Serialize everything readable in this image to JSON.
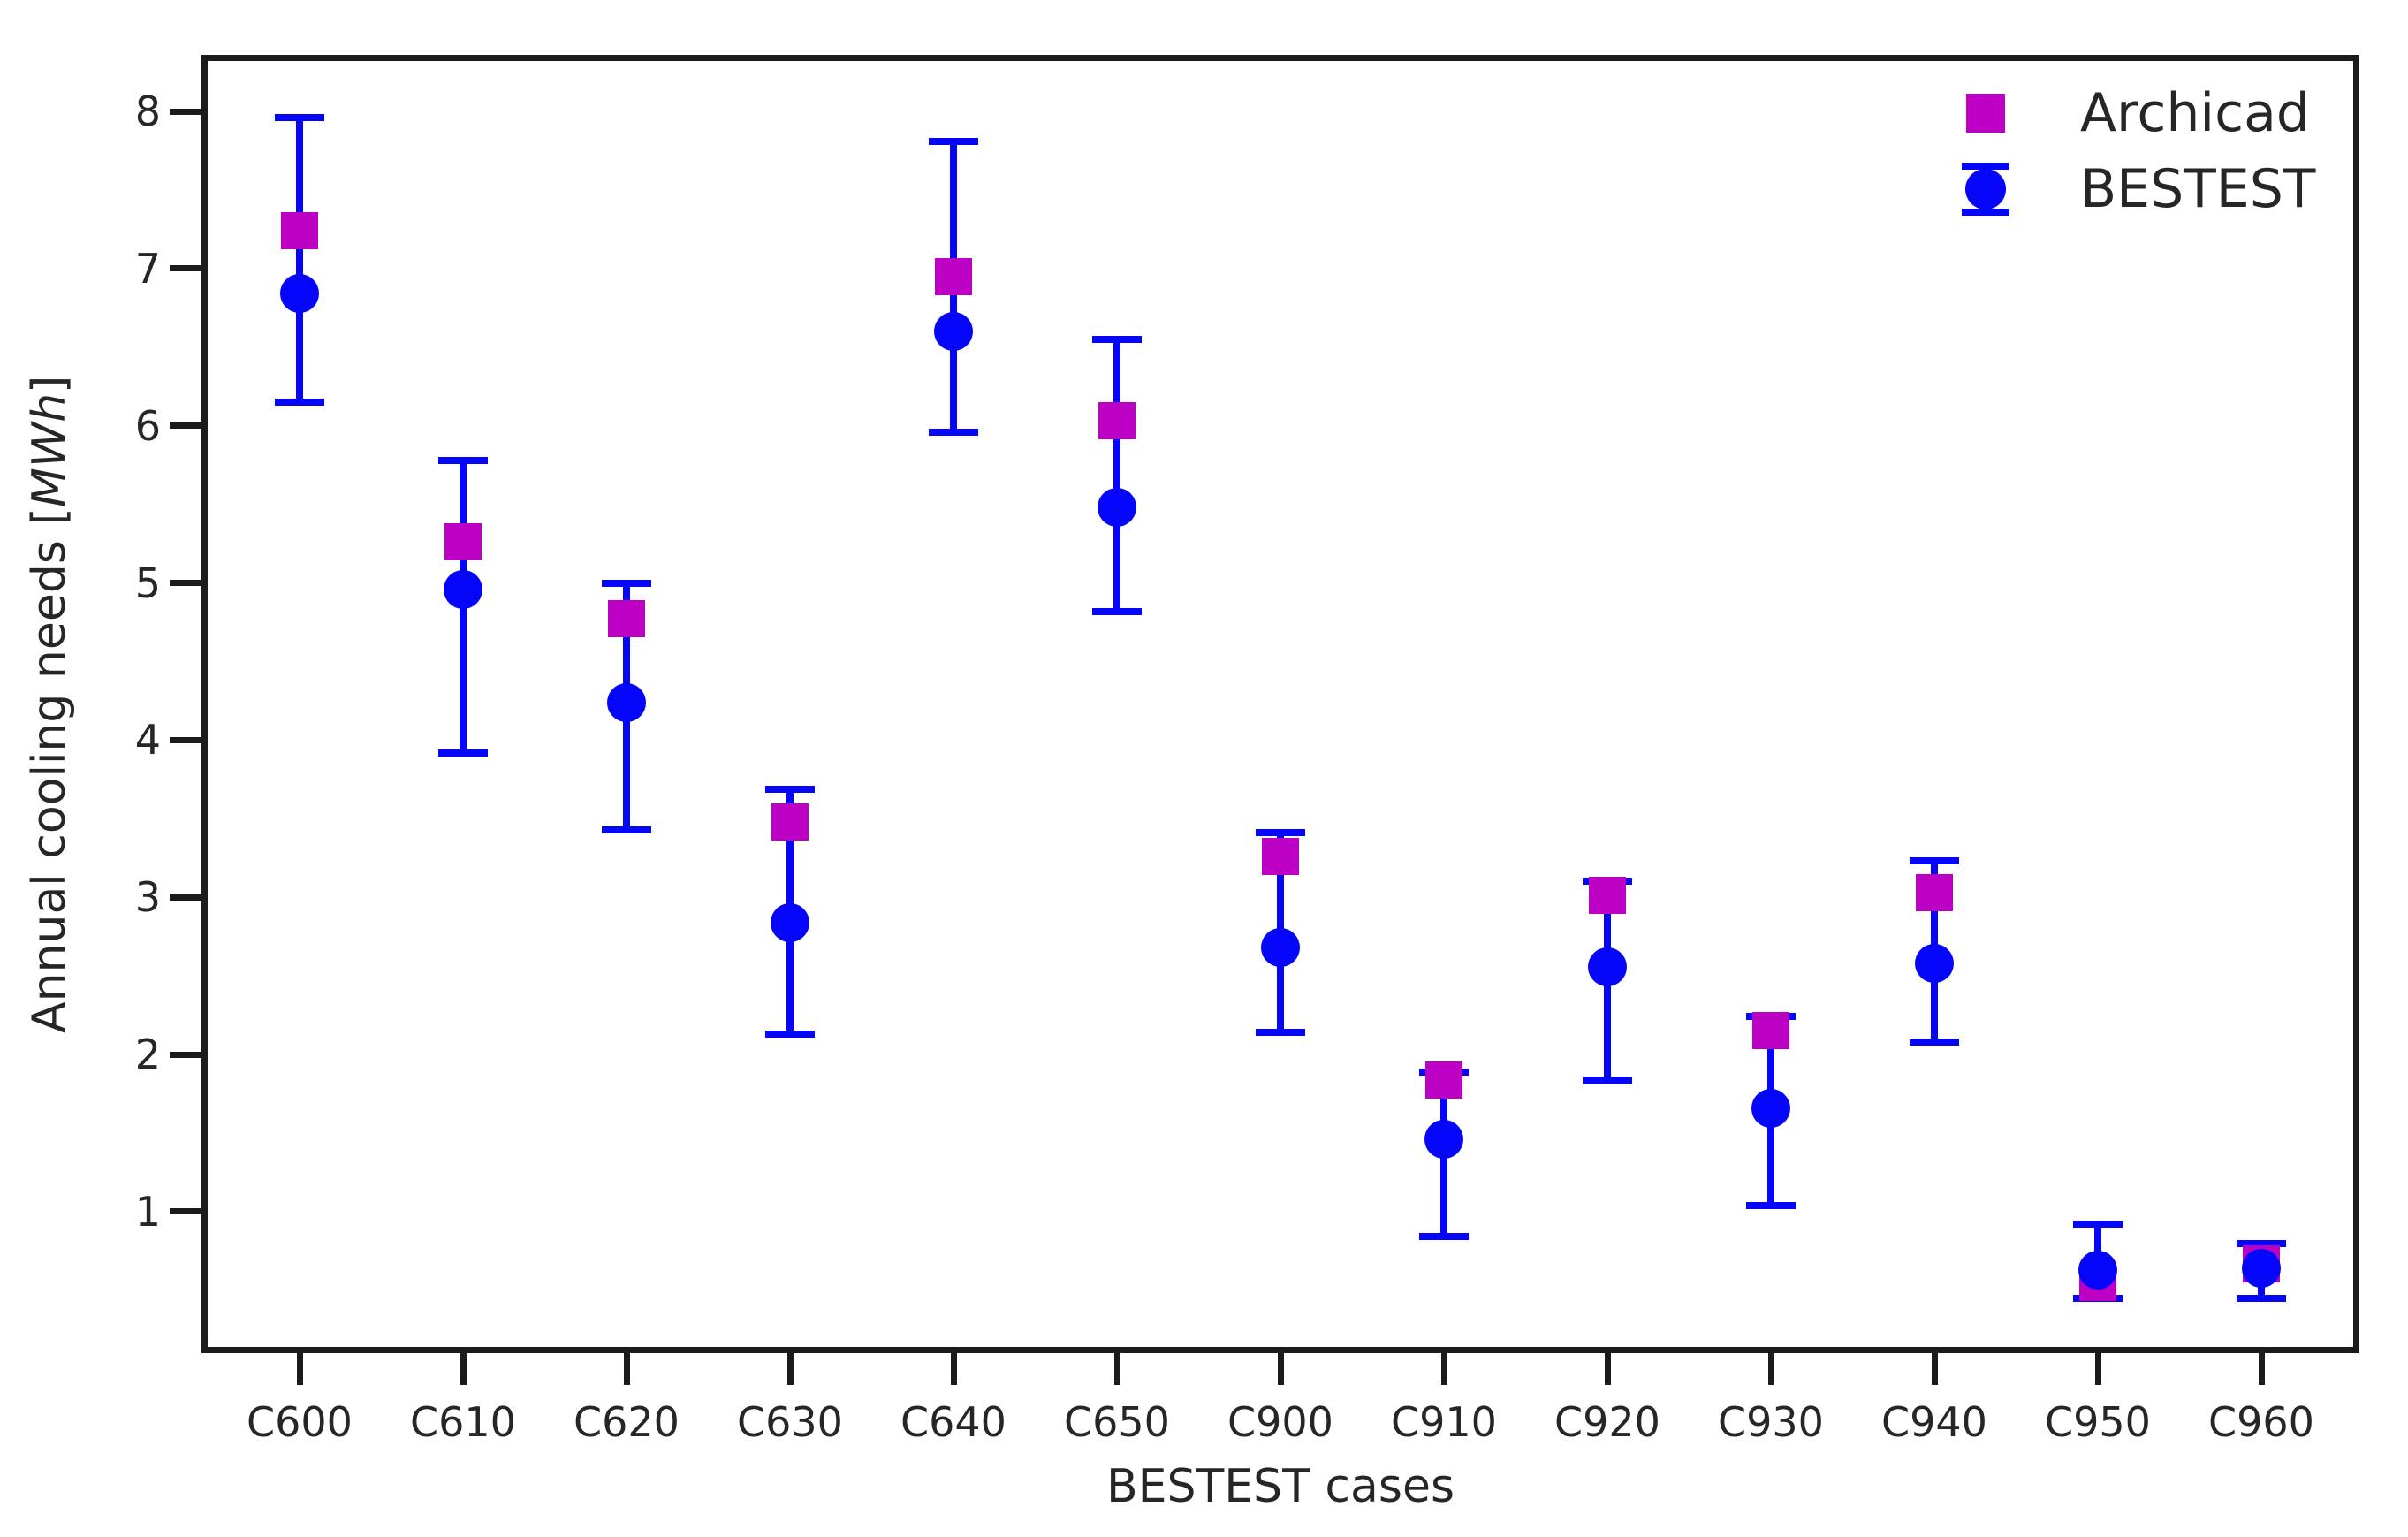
{
  "figure": {
    "background": "#ffffff",
    "text_color": "#262626",
    "spine_color": "#1b1b1b"
  },
  "legend": {
    "frame": false,
    "position": "upper right",
    "entries": [
      {
        "label": "Archicad",
        "marker": "square",
        "color": "#bc00c4"
      },
      {
        "label": "BESTEST",
        "marker": "circle-errorbar",
        "color": "#0505fa"
      }
    ]
  },
  "ylabel": {
    "prefix": "Annual cooling needs [",
    "italic": "MWh",
    "suffix": "]"
  },
  "chart_data": {
    "type": "scatter",
    "title": "",
    "xlabel": "BESTEST cases",
    "ylabel": "Annual cooling needs [MWh]",
    "grid": false,
    "legend_position": "upper right",
    "categories": [
      "C600",
      "C610",
      "C620",
      "C630",
      "C640",
      "C650",
      "C900",
      "C910",
      "C920",
      "C930",
      "C940",
      "C950",
      "C960"
    ],
    "yticks": [
      1,
      2,
      3,
      4,
      5,
      6,
      7,
      8
    ],
    "ylim": [
      0.1,
      8.36
    ],
    "x_edge_margin": 0.6,
    "series": [
      {
        "name": "Archicad",
        "marker": "square",
        "color": "#bc00c4",
        "values": [
          7.24,
          5.26,
          4.77,
          3.48,
          6.95,
          6.03,
          3.26,
          1.84,
          3.01,
          2.15,
          3.03,
          0.55,
          0.67
        ]
      },
      {
        "name": "BESTEST",
        "marker": "circle",
        "color": "#0505fa",
        "values": [
          6.84,
          4.96,
          4.24,
          2.84,
          6.6,
          5.48,
          2.68,
          1.46,
          2.56,
          1.66,
          2.58,
          0.63,
          0.64
        ],
        "err_min": [
          6.15,
          3.92,
          3.43,
          2.13,
          5.96,
          4.82,
          2.14,
          0.84,
          1.84,
          1.04,
          2.08,
          0.45,
          0.45
        ],
        "err_max": [
          7.96,
          5.78,
          5.0,
          3.69,
          7.81,
          6.55,
          3.41,
          1.89,
          3.1,
          2.24,
          3.23,
          0.92,
          0.8
        ]
      }
    ]
  }
}
